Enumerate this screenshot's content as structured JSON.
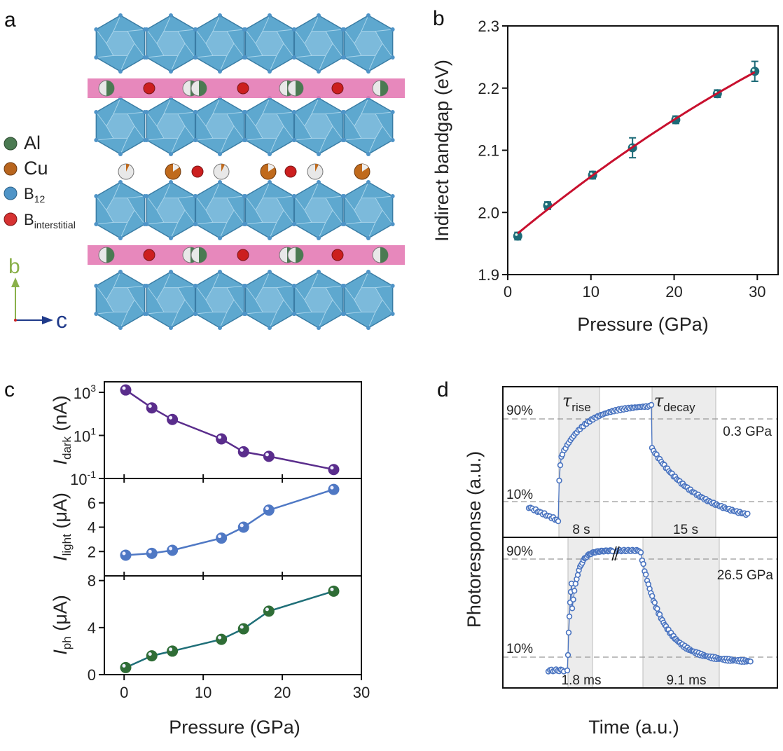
{
  "panel_labels": {
    "a": "a",
    "b": "b",
    "c": "c",
    "d": "d"
  },
  "legend": {
    "items": [
      {
        "label": "Al",
        "sub": "",
        "color": "#4d7a55"
      },
      {
        "label": "Cu",
        "sub": "",
        "color": "#b8651e"
      },
      {
        "label": "B",
        "sub": "12",
        "color": "#4f94c7"
      },
      {
        "label": "B",
        "sub": "interstitial",
        "color": "#d63232"
      }
    ]
  },
  "axes_indicator": {
    "b": "b",
    "c": "c",
    "b_color": "#8ab04a",
    "c_color": "#1f3a8a"
  },
  "structure_colors": {
    "icosahedra": "#5ea8cf",
    "band": "#e373b0",
    "interstitial": "#cc1f1f",
    "cu": "#c06a1c",
    "al": "#4b7a52"
  },
  "chart_data": [
    {
      "panel": "b",
      "type": "scatter",
      "xlabel": "Pressure (GPa)",
      "ylabel": "Indirect bandgap (eV)",
      "xlim": [
        0,
        32.5
      ],
      "ylim": [
        1.9,
        2.3
      ],
      "xticks": [
        "0",
        "10",
        "20",
        "30"
      ],
      "yticks": [
        "1.9",
        "2.0",
        "2.1",
        "2.2",
        "2.3"
      ],
      "x": [
        1.2,
        4.8,
        10.2,
        15.0,
        20.2,
        25.2,
        29.7
      ],
      "y": [
        1.962,
        2.011,
        2.06,
        2.104,
        2.149,
        2.191,
        2.227
      ],
      "yerr": [
        0.006,
        0.006,
        0.006,
        0.016,
        0.006,
        0.006,
        0.016
      ],
      "fit": "red curve",
      "colors": {
        "points": "#1d6b78",
        "fit": "#c8102e"
      }
    },
    {
      "panel": "c",
      "type": "line",
      "xlabel": "Pressure (GPa)",
      "xlim": [
        -2.5,
        30
      ],
      "xticks": [
        "0",
        "10",
        "20",
        "30"
      ],
      "x": [
        0.2,
        3.5,
        6.1,
        12.3,
        15.1,
        18.3,
        26.5
      ],
      "subplots": [
        {
          "ylabel": "I",
          "ysub": "dark",
          "yunit": "(nA)",
          "scale": "log",
          "ylim_log10": [
            -1,
            3.49
          ],
          "yticks": [
            {
              "base": "10",
              "exp": "3"
            },
            {
              "base": "10",
              "exp": "1"
            },
            {
              "base": "10",
              "exp": "-1"
            }
          ],
          "values": [
            1290,
            190,
            55,
            6.9,
            1.74,
            1.07,
            0.26
          ],
          "color": "#5a2d8c"
        },
        {
          "ylabel": "I",
          "ysub": "light",
          "yunit": "(μA)",
          "scale": "linear",
          "ylim": [
            0,
            8
          ],
          "yticks": [
            "2",
            "4",
            "6"
          ],
          "values": [
            1.7,
            1.85,
            2.1,
            3.1,
            4.0,
            5.4,
            7.1
          ],
          "color": "#4f78c4"
        },
        {
          "ylabel": "I",
          "ysub": "ph",
          "yunit": "(μA)",
          "scale": "linear",
          "ylim": [
            0,
            8.4
          ],
          "yticks": [
            "0",
            "4",
            "8"
          ],
          "values": [
            0.6,
            1.6,
            2.0,
            3.0,
            3.9,
            5.4,
            7.1
          ],
          "color": "#2f6d36",
          "line_color": "#1f6f78"
        }
      ]
    },
    {
      "panel": "d",
      "type": "scatter",
      "xlabel": "Time (a.u.)",
      "ylabel": "Photoresponse (a.u.)",
      "marker_color": "#4a74c0",
      "subplots": [
        {
          "pressure": "0.3 GPa",
          "level_high": "90%",
          "level_low": "10%",
          "rise_label": "τ",
          "rise_sub": "rise",
          "decay_label": "τ",
          "decay_sub": "decay",
          "rise_time": "8 s",
          "decay_time": "15 s"
        },
        {
          "pressure": "26.5 GPa",
          "level_high": "90%",
          "level_low": "10%",
          "rise_time": "1.8 ms",
          "decay_time": "9.1 ms"
        }
      ]
    }
  ]
}
